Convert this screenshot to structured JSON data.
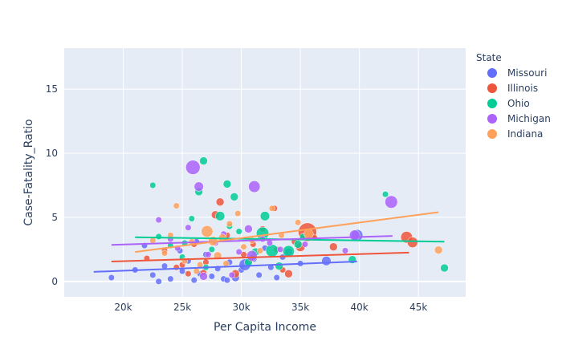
{
  "chart_data": {
    "type": "scatter",
    "title": "",
    "xlabel": "Per Capita Income",
    "ylabel": "Case-Fatality_Ratio",
    "xlim": [
      15000,
      49000
    ],
    "ylim": [
      -1.2,
      18.2
    ],
    "x_ticks": [
      20000,
      25000,
      30000,
      35000,
      40000,
      45000
    ],
    "x_tick_labels": [
      "20k",
      "25k",
      "30k",
      "35k",
      "40k",
      "45k"
    ],
    "y_ticks": [
      0,
      5,
      10,
      15
    ],
    "y_tick_labels": [
      "0",
      "5",
      "10",
      "15"
    ],
    "grid": true,
    "legend": {
      "title": "State",
      "placement": "right"
    },
    "series": [
      {
        "name": "Missouri",
        "color": "#636efa",
        "trendline": [
          [
            17500,
            0.75
          ],
          [
            39800,
            1.55
          ]
        ],
        "points": [
          [
            19000,
            0.3,
            1
          ],
          [
            21000,
            0.9,
            1
          ],
          [
            22500,
            0.5,
            1
          ],
          [
            23500,
            1.2,
            1
          ],
          [
            24000,
            0.2,
            1
          ],
          [
            25000,
            0.8,
            1
          ],
          [
            25500,
            1.6,
            1
          ],
          [
            26000,
            0.1,
            1
          ],
          [
            26500,
            0.6,
            1
          ],
          [
            27000,
            2.1,
            1
          ],
          [
            27500,
            0.4,
            1
          ],
          [
            28000,
            1.0,
            1
          ],
          [
            28500,
            0.2,
            1
          ],
          [
            29000,
            1.5,
            1
          ],
          [
            29500,
            0.3,
            2
          ],
          [
            30000,
            0.9,
            1
          ],
          [
            30300,
            1.3,
            5
          ],
          [
            31000,
            1.8,
            2
          ],
          [
            31500,
            0.5,
            1
          ],
          [
            32000,
            2.6,
            1
          ],
          [
            32500,
            1.1,
            1
          ],
          [
            33000,
            0.3,
            1
          ],
          [
            33500,
            1.9,
            1
          ],
          [
            34000,
            2.3,
            2
          ],
          [
            35000,
            1.4,
            1
          ],
          [
            37200,
            1.6,
            3
          ],
          [
            39800,
            3.6,
            5
          ],
          [
            24800,
            2.4,
            1
          ],
          [
            26200,
            3.1,
            1
          ],
          [
            28800,
            0.1,
            1
          ],
          [
            21800,
            2.8,
            1
          ],
          [
            23000,
            0.0,
            1
          ]
        ]
      },
      {
        "name": "Illinois",
        "color": "#ef553b",
        "trendline": [
          [
            19000,
            1.55
          ],
          [
            44200,
            2.25
          ]
        ],
        "points": [
          [
            22000,
            1.8,
            1
          ],
          [
            23500,
            2.4,
            1
          ],
          [
            24500,
            1.1,
            1
          ],
          [
            25500,
            0.6,
            1
          ],
          [
            26000,
            2.9,
            1
          ],
          [
            27000,
            1.5,
            1
          ],
          [
            27800,
            5.2,
            2
          ],
          [
            28200,
            6.2,
            2
          ],
          [
            28800,
            3.6,
            1
          ],
          [
            29500,
            0.6,
            2
          ],
          [
            30200,
            2.1,
            1
          ],
          [
            31000,
            2.9,
            1
          ],
          [
            31800,
            4.1,
            1
          ],
          [
            32800,
            5.7,
            1
          ],
          [
            33500,
            0.9,
            1
          ],
          [
            34000,
            0.6,
            2
          ],
          [
            34500,
            3.1,
            1
          ],
          [
            35600,
            3.85,
            14
          ],
          [
            36200,
            3.4,
            1
          ],
          [
            37800,
            2.7,
            2
          ],
          [
            44000,
            3.45,
            5
          ],
          [
            44500,
            3.05,
            4
          ],
          [
            25000,
            1.3,
            1
          ],
          [
            26800,
            0.7,
            1
          ],
          [
            30800,
            1.7,
            1
          ],
          [
            33000,
            2.5,
            1
          ],
          [
            35000,
            2.7,
            3
          ]
        ]
      },
      {
        "name": "Ohio",
        "color": "#00cc96",
        "trendline": [
          [
            21000,
            3.45
          ],
          [
            47200,
            3.1
          ]
        ],
        "points": [
          [
            22500,
            7.5,
            1
          ],
          [
            23000,
            3.5,
            1
          ],
          [
            24000,
            2.8,
            1
          ],
          [
            25000,
            1.9,
            1
          ],
          [
            25800,
            4.9,
            1
          ],
          [
            26400,
            7.0,
            2
          ],
          [
            26800,
            9.4,
            2
          ],
          [
            27500,
            2.5,
            1
          ],
          [
            28200,
            5.1,
            3
          ],
          [
            28800,
            7.6,
            2
          ],
          [
            29400,
            6.6,
            2
          ],
          [
            29800,
            3.9,
            1
          ],
          [
            30600,
            1.5,
            2
          ],
          [
            31200,
            2.3,
            2
          ],
          [
            31800,
            3.75,
            6
          ],
          [
            32000,
            5.1,
            3
          ],
          [
            32600,
            2.4,
            6
          ],
          [
            33200,
            1.2,
            2
          ],
          [
            34000,
            2.35,
            5
          ],
          [
            34800,
            2.9,
            2
          ],
          [
            35200,
            3.5,
            1
          ],
          [
            39400,
            1.7,
            2
          ],
          [
            42200,
            6.8,
            1
          ],
          [
            47200,
            1.05,
            2
          ],
          [
            27000,
            1.1,
            1
          ],
          [
            25200,
            3.0,
            1
          ],
          [
            29000,
            4.3,
            1
          ]
        ]
      },
      {
        "name": "Michigan",
        "color": "#ab63fa",
        "trendline": [
          [
            19000,
            2.85
          ],
          [
            42800,
            3.55
          ]
        ],
        "points": [
          [
            23000,
            4.8,
            1
          ],
          [
            24000,
            3.3,
            1
          ],
          [
            25500,
            4.2,
            1
          ],
          [
            25900,
            8.9,
            8
          ],
          [
            26400,
            7.4,
            3
          ],
          [
            26800,
            0.4,
            2
          ],
          [
            27200,
            2.1,
            1
          ],
          [
            27800,
            3.0,
            1
          ],
          [
            28500,
            3.7,
            1
          ],
          [
            29200,
            0.5,
            1
          ],
          [
            29800,
            2.3,
            1
          ],
          [
            30600,
            4.1,
            2
          ],
          [
            31100,
            7.4,
            5
          ],
          [
            31800,
            3.3,
            1
          ],
          [
            32400,
            3.0,
            1
          ],
          [
            33300,
            2.5,
            1
          ],
          [
            35400,
            2.9,
            1
          ],
          [
            38800,
            2.4,
            1
          ],
          [
            39600,
            3.6,
            4
          ],
          [
            42700,
            6.2,
            6
          ],
          [
            24600,
            2.6,
            1
          ],
          [
            30900,
            2.0,
            4
          ]
        ]
      },
      {
        "name": "Indiana",
        "color": "#ffa15a",
        "trendline": [
          [
            21000,
            2.3
          ],
          [
            46700,
            5.4
          ]
        ],
        "points": [
          [
            22500,
            3.2,
            1
          ],
          [
            23500,
            2.2,
            1
          ],
          [
            24500,
            5.9,
            1
          ],
          [
            25200,
            1.6,
            1
          ],
          [
            25800,
            3.1,
            1
          ],
          [
            26500,
            1.3,
            1
          ],
          [
            27100,
            3.9,
            5
          ],
          [
            27600,
            3.15,
            3
          ],
          [
            28000,
            2.0,
            2
          ],
          [
            28400,
            3.4,
            2
          ],
          [
            29000,
            4.5,
            1
          ],
          [
            29700,
            5.3,
            1
          ],
          [
            30200,
            2.7,
            1
          ],
          [
            30900,
            3.2,
            1
          ],
          [
            31600,
            2.4,
            1
          ],
          [
            32600,
            5.7,
            1
          ],
          [
            33400,
            3.6,
            1
          ],
          [
            34800,
            4.6,
            1
          ],
          [
            35700,
            3.7,
            3
          ],
          [
            46700,
            2.45,
            2
          ],
          [
            26200,
            0.8,
            1
          ],
          [
            28700,
            1.4,
            1
          ],
          [
            24000,
            3.6,
            1
          ]
        ]
      }
    ]
  }
}
